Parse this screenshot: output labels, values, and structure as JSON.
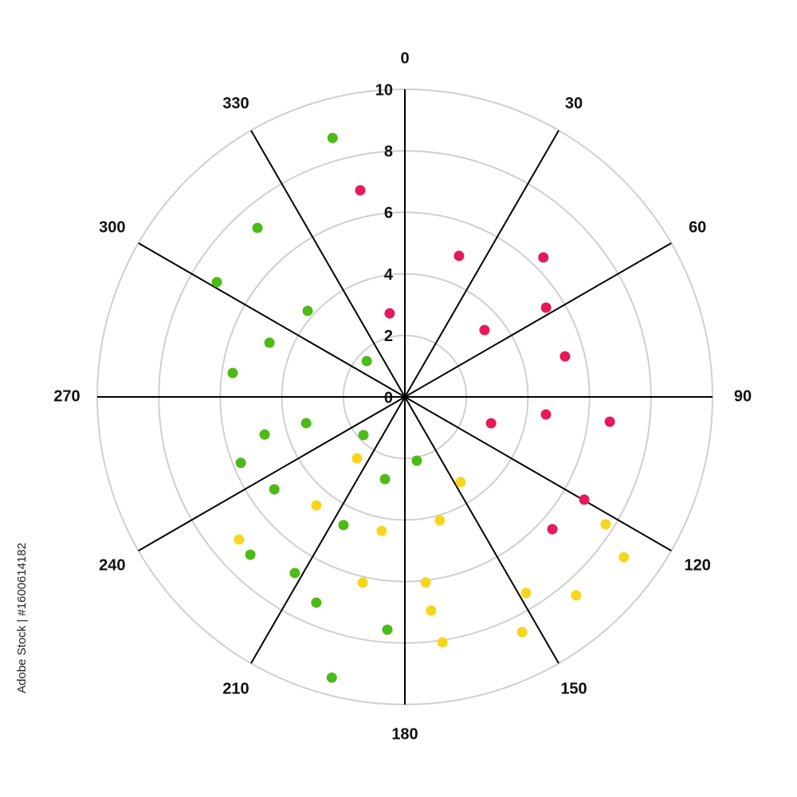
{
  "chart_data": {
    "type": "polar_scatter",
    "watermark": "Adobe Stock | #1600614182",
    "rlim": [
      0,
      10
    ],
    "rticks": [
      0,
      2,
      4,
      6,
      8,
      10
    ],
    "thetaticks": [
      0,
      30,
      60,
      90,
      120,
      150,
      180,
      210,
      240,
      270,
      300,
      330
    ],
    "grid": true,
    "series": [
      {
        "color": "#e8185a",
        "theta": [
          347.8,
          349.7,
          21.0,
          44.8,
          50.0,
          57.7,
          75.8,
          107.0,
          97.1,
          96.9,
          119.8,
          131.9
        ],
        "r": [
          6.87,
          2.76,
          4.91,
          6.39,
          3.38,
          5.43,
          5.37,
          2.93,
          4.62,
          6.71,
          6.72,
          6.44
        ]
      },
      {
        "color": "#f7d51c",
        "theta": [
          217.9,
          146.8,
          219.2,
          164.2,
          189.8,
          122.4,
          126.2,
          229.3,
          192.8,
          173.6,
          173.0,
          148.3,
          139.2,
          171.3,
          153.5
        ],
        "r": [
          2.53,
          3.31,
          4.55,
          4.17,
          4.42,
          7.73,
          8.82,
          7.11,
          6.19,
          6.07,
          7.0,
          7.49,
          8.52,
          8.07,
          8.54
        ]
      },
      {
        "color": "#4cbb17",
        "theta": [
          344.4,
          318.9,
          301.4,
          311.5,
          291.8,
          277.9,
          313.2,
          255.1,
          255.0,
          227.3,
          248.1,
          169.4,
          234.7,
          193.6,
          205.6,
          224.4,
          212.0,
          203.3,
          184.3,
          194.6
        ],
        "r": [
          8.74,
          7.29,
          7.16,
          4.22,
          4.74,
          5.65,
          1.7,
          3.32,
          4.72,
          1.83,
          5.75,
          2.11,
          5.2,
          2.75,
          4.62,
          7.18,
          6.75,
          7.28,
          7.59,
          9.43
        ]
      }
    ]
  }
}
